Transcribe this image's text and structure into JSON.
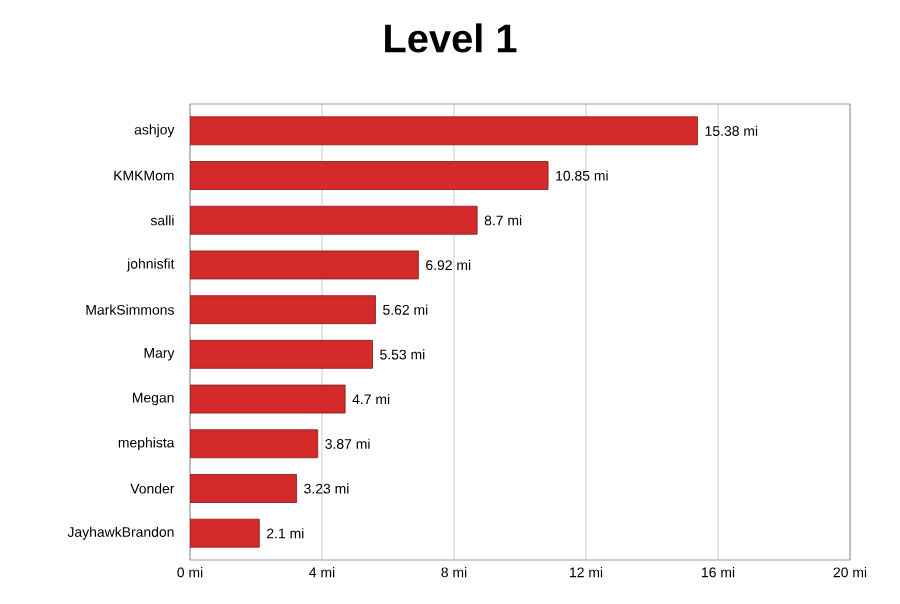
{
  "chart_data": {
    "type": "bar",
    "orientation": "horizontal",
    "title": "Level 1",
    "categories": [
      "ashjoy",
      "KMKMom",
      "salli",
      "johnisfit",
      "MarkSimmons",
      "Mary",
      "Megan",
      "mephista",
      "Vonder",
      "JayhawkBrandon"
    ],
    "values": [
      15.38,
      10.85,
      8.7,
      6.92,
      5.62,
      5.53,
      4.7,
      3.87,
      3.23,
      2.1
    ],
    "value_labels": [
      "15.38 mi",
      "10.85 mi",
      "8.7 mi",
      "6.92 mi",
      "5.62 mi",
      "5.53 mi",
      "4.7 mi",
      "3.87 mi",
      "3.23 mi",
      "2.1 mi"
    ],
    "color": "#d42a2a",
    "xlim": [
      0,
      20
    ],
    "xticks": [
      {
        "value": 0,
        "label": "0 mi"
      },
      {
        "value": 4,
        "label": "4 mi"
      },
      {
        "value": 8,
        "label": "8 mi"
      },
      {
        "value": 12,
        "label": "12 mi"
      },
      {
        "value": 16,
        "label": "16 mi"
      },
      {
        "value": 20,
        "label": "20 mi"
      }
    ],
    "grid": "x"
  }
}
